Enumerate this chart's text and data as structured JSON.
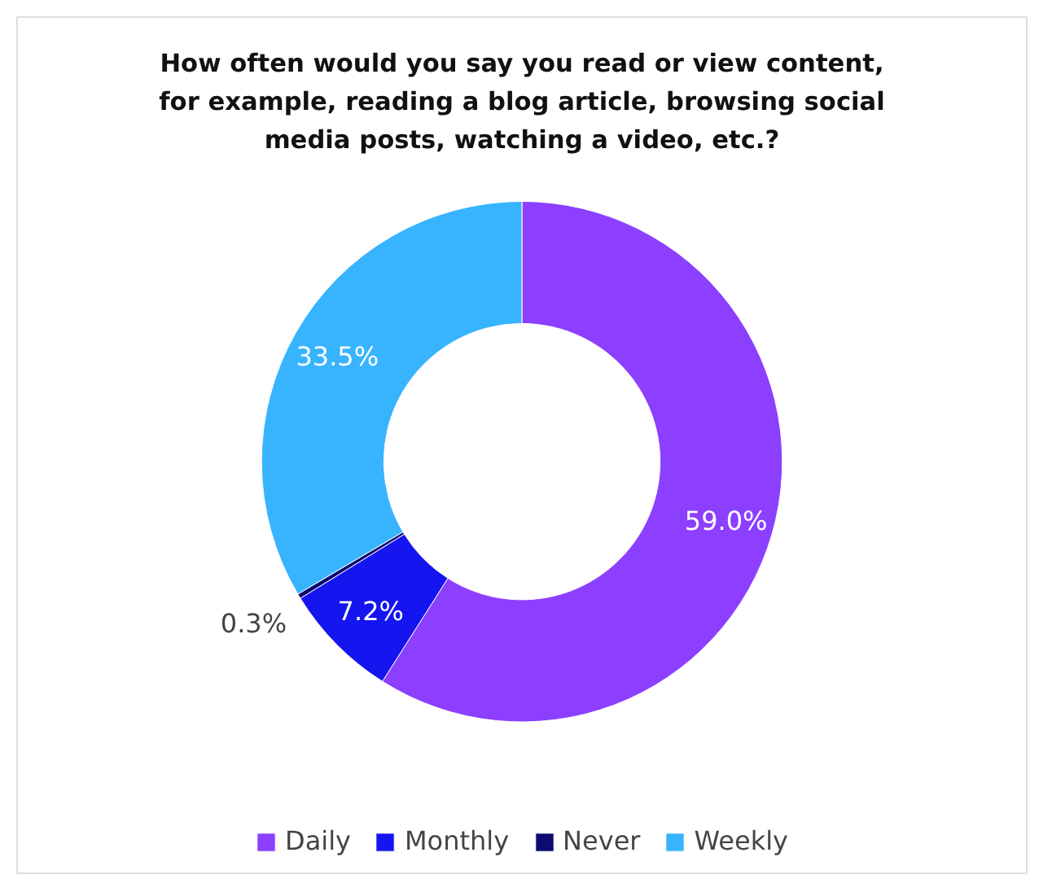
{
  "chart_data": {
    "type": "donut",
    "title": "How often would you say you read or view content, for example, reading a blog article, browsing social media posts, watching a video, etc.?",
    "categories": [
      "Daily",
      "Monthly",
      "Never",
      "Weekly"
    ],
    "values": [
      59.0,
      7.2,
      0.3,
      33.5
    ],
    "colors": [
      "#8c3fff",
      "#1515f0",
      "#0b0b70",
      "#38b4ff"
    ],
    "value_labels": [
      "59.0%",
      "7.2%",
      "0.3%",
      "33.5%"
    ],
    "legend": "bottom"
  }
}
